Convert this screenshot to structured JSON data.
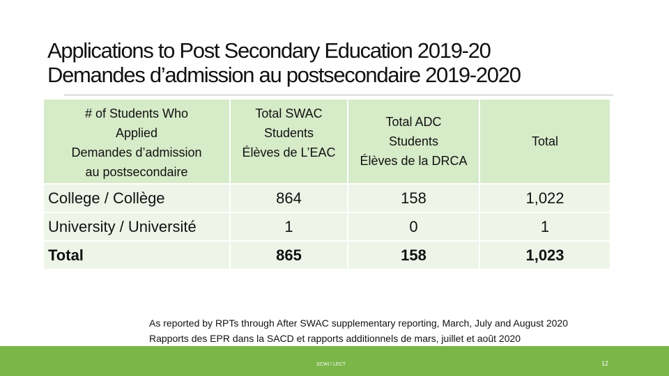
{
  "title": {
    "line1": "Applications to Post Secondary Education 2019-20",
    "line2": "Demandes d’admission au postsecondaire 2019-2020"
  },
  "table": {
    "headers": [
      [
        "# of Students Who",
        "Applied",
        "Demandes d’admission",
        "au postsecondaire"
      ],
      [
        "Total SWAC",
        "Students",
        "Élèves de L’EAC"
      ],
      [
        "Total ADC",
        "Students",
        "Élèves de la DRCA"
      ],
      [
        "Total"
      ]
    ],
    "rows": [
      {
        "label": "College / Collège",
        "swac": "864",
        "adc": "158",
        "total": "1,022"
      },
      {
        "label": "University / Université",
        "swac": "1",
        "adc": "0",
        "total": "1"
      },
      {
        "label": "Total",
        "swac": "865",
        "adc": "158",
        "total": "1,023"
      }
    ]
  },
  "footnote": {
    "line1": "As reported by RPTs through After SWAC supplementary reporting, March, July and August 2020",
    "line2": "Rapports des EPR dans la SACD et rapports additionnels de mars, juillet et août 2020"
  },
  "footer": {
    "center": "SCWI / LECT",
    "page": "12"
  },
  "colors": {
    "header_fill": "#d6ebc8",
    "row_fill": "#eef5e8",
    "footer_bar": "#7ab648"
  }
}
